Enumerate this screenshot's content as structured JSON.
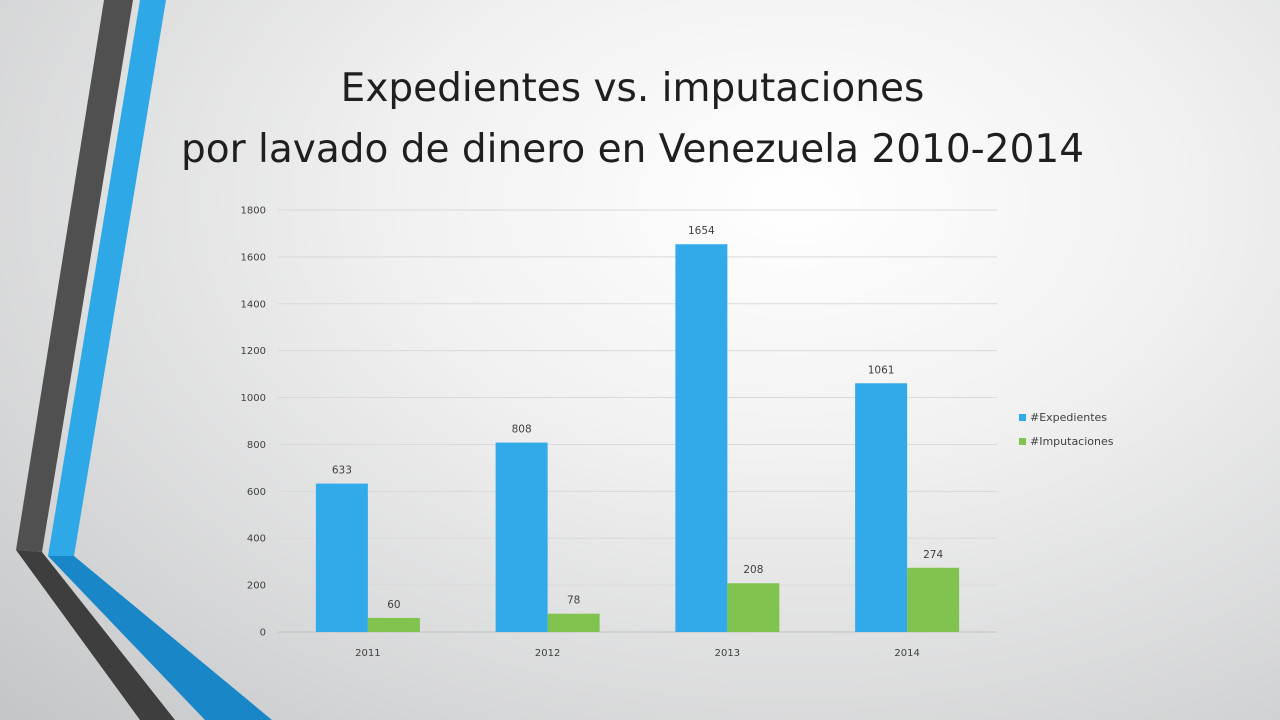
{
  "slide": {
    "title_line1": "Expedientes vs. imputaciones",
    "title_line2": "por lavado de dinero en Venezuela 2010-2014"
  },
  "colors": {
    "expedientes": "#32aaea",
    "imputaciones": "#80c34f",
    "gridline": "#d9d9d9",
    "decor_dark": "#505050",
    "decor_blue": "#2fa8e8"
  },
  "chart_data": {
    "type": "bar",
    "categories": [
      "2011",
      "2012",
      "2013",
      "2014"
    ],
    "series": [
      {
        "name": "#Expedientes",
        "values": [
          633,
          808,
          1654,
          1061
        ]
      },
      {
        "name": "#Imputaciones",
        "values": [
          60,
          78,
          208,
          274
        ]
      }
    ],
    "ylim": [
      0,
      1800
    ],
    "yticks": [
      0,
      200,
      400,
      600,
      800,
      1000,
      1200,
      1400,
      1600,
      1800
    ],
    "data_labels": true,
    "grid": true,
    "legend_position": "right"
  }
}
